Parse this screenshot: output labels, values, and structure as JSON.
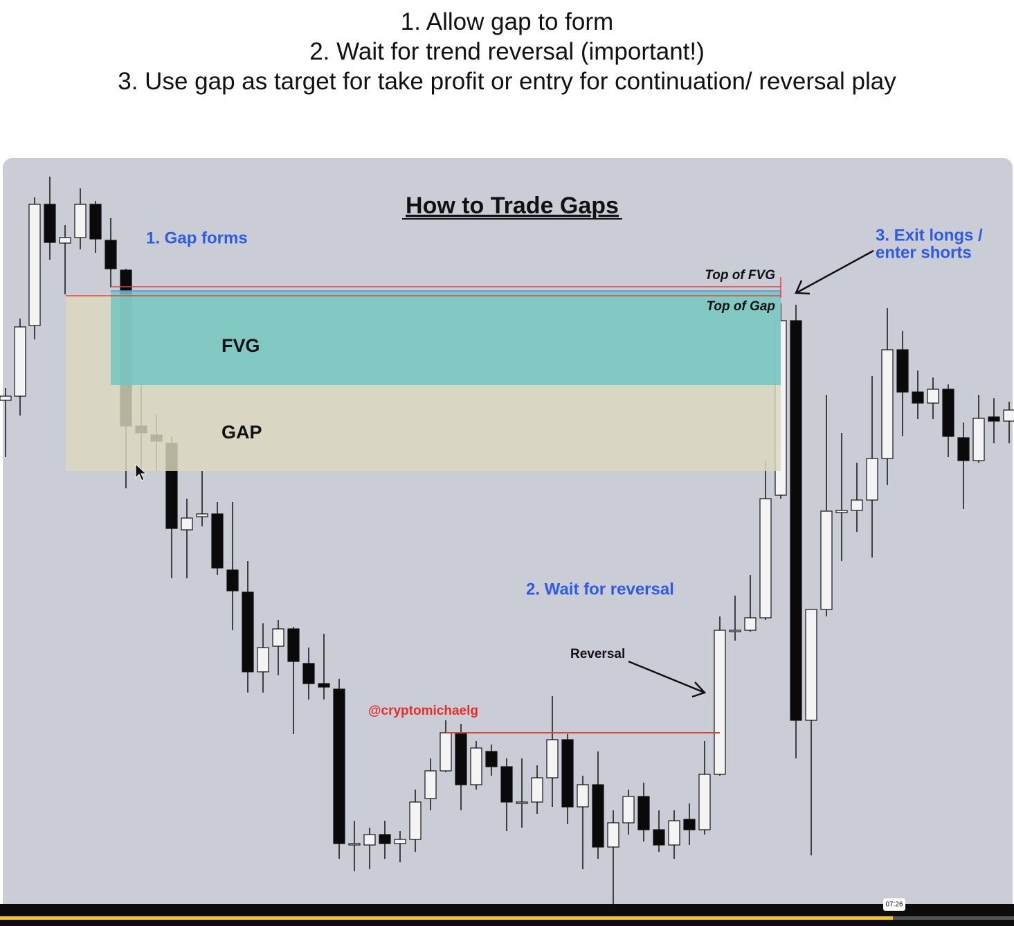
{
  "header": {
    "lines": [
      "1. Allow gap to form",
      "2. Wait for trend reversal (important!)",
      "3. Use gap as target for take profit or entry for continuation/ reversal play"
    ]
  },
  "slide": {
    "title": "How to Trade Gaps",
    "step1": "1. Gap forms",
    "step2": "2. Wait for reversal",
    "step3": [
      "3. Exit longs /",
      "enter shorts"
    ],
    "fvg": "FVG",
    "gap": "GAP",
    "top_of_fvg": "Top of FVG",
    "top_of_gap": "Top of Gap",
    "reversal": "Reversal",
    "watermark": "@cryptomichaelg"
  },
  "player": {
    "time": "07:26"
  }
}
